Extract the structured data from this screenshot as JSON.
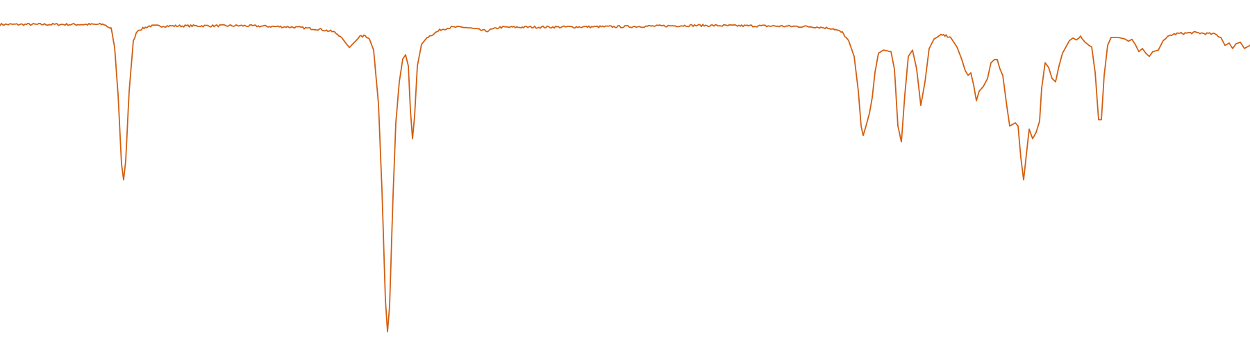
{
  "chart_data": {
    "type": "line",
    "title": "",
    "xlabel": "",
    "ylabel": "",
    "xlim": [
      0,
      1800
    ],
    "ylim": [
      0,
      1
    ],
    "grid": false,
    "legend": "none",
    "axes_visible": false,
    "series": [
      {
        "color": "#d35f10",
        "style": "noisy",
        "points": [
          [
            0,
            0.971
          ],
          [
            150,
            0.971
          ],
          [
            160,
            0.958
          ],
          [
            165,
            0.9
          ],
          [
            170,
            0.75
          ],
          [
            175,
            0.53
          ],
          [
            178,
            0.48
          ],
          [
            181,
            0.54
          ],
          [
            186,
            0.76
          ],
          [
            192,
            0.92
          ],
          [
            198,
            0.952
          ],
          [
            215,
            0.966
          ],
          [
            350,
            0.967
          ],
          [
            420,
            0.963
          ],
          [
            460,
            0.956
          ],
          [
            480,
            0.948
          ],
          [
            490,
            0.935
          ],
          [
            496,
            0.918
          ],
          [
            503,
            0.898
          ],
          [
            510,
            0.914
          ],
          [
            518,
            0.932
          ],
          [
            526,
            0.935
          ],
          [
            532,
            0.925
          ],
          [
            538,
            0.89
          ],
          [
            545,
            0.72
          ],
          [
            550,
            0.45
          ],
          [
            555,
            0.1
          ],
          [
            558,
            0.0
          ],
          [
            561,
            0.08
          ],
          [
            566,
            0.43
          ],
          [
            570,
            0.66
          ],
          [
            575,
            0.79
          ],
          [
            580,
            0.862
          ],
          [
            584,
            0.875
          ],
          [
            588,
            0.84
          ],
          [
            591,
            0.7
          ],
          [
            594,
            0.61
          ],
          [
            597,
            0.68
          ],
          [
            601,
            0.84
          ],
          [
            607,
            0.908
          ],
          [
            615,
            0.93
          ],
          [
            635,
            0.955
          ],
          [
            650,
            0.962
          ],
          [
            670,
            0.962
          ],
          [
            700,
            0.95
          ],
          [
            720,
            0.962
          ],
          [
            900,
            0.964
          ],
          [
            1000,
            0.968
          ],
          [
            1110,
            0.966
          ],
          [
            1170,
            0.964
          ],
          [
            1200,
            0.958
          ],
          [
            1213,
            0.945
          ],
          [
            1222,
            0.92
          ],
          [
            1230,
            0.87
          ],
          [
            1236,
            0.76
          ],
          [
            1240,
            0.65
          ],
          [
            1243,
            0.62
          ],
          [
            1247,
            0.65
          ],
          [
            1252,
            0.69
          ],
          [
            1256,
            0.74
          ],
          [
            1260,
            0.82
          ],
          [
            1265,
            0.88
          ],
          [
            1272,
            0.89
          ],
          [
            1283,
            0.885
          ],
          [
            1288,
            0.83
          ],
          [
            1293,
            0.65
          ],
          [
            1298,
            0.6
          ],
          [
            1303,
            0.75
          ],
          [
            1308,
            0.87
          ],
          [
            1314,
            0.89
          ],
          [
            1320,
            0.83
          ],
          [
            1326,
            0.715
          ],
          [
            1332,
            0.79
          ],
          [
            1338,
            0.895
          ],
          [
            1345,
            0.925
          ],
          [
            1355,
            0.937
          ],
          [
            1368,
            0.933
          ],
          [
            1378,
            0.9
          ],
          [
            1385,
            0.86
          ],
          [
            1390,
            0.825
          ],
          [
            1394,
            0.81
          ],
          [
            1398,
            0.818
          ],
          [
            1402,
            0.78
          ],
          [
            1406,
            0.73
          ],
          [
            1410,
            0.76
          ],
          [
            1416,
            0.775
          ],
          [
            1422,
            0.8
          ],
          [
            1427,
            0.85
          ],
          [
            1432,
            0.86
          ],
          [
            1436,
            0.86
          ],
          [
            1440,
            0.83
          ],
          [
            1444,
            0.81
          ],
          [
            1450,
            0.71
          ],
          [
            1454,
            0.65
          ],
          [
            1458,
            0.655
          ],
          [
            1462,
            0.66
          ],
          [
            1466,
            0.65
          ],
          [
            1470,
            0.55
          ],
          [
            1474,
            0.48
          ],
          [
            1478,
            0.56
          ],
          [
            1482,
            0.64
          ],
          [
            1487,
            0.61
          ],
          [
            1492,
            0.63
          ],
          [
            1497,
            0.665
          ],
          [
            1500,
            0.77
          ],
          [
            1505,
            0.85
          ],
          [
            1510,
            0.835
          ],
          [
            1515,
            0.8
          ],
          [
            1520,
            0.79
          ],
          [
            1525,
            0.84
          ],
          [
            1530,
            0.88
          ],
          [
            1540,
            0.92
          ],
          [
            1545,
            0.928
          ],
          [
            1550,
            0.922
          ],
          [
            1556,
            0.932
          ],
          [
            1562,
            0.916
          ],
          [
            1568,
            0.905
          ],
          [
            1572,
            0.9
          ],
          [
            1577,
            0.82
          ],
          [
            1582,
            0.67
          ],
          [
            1586,
            0.67
          ],
          [
            1590,
            0.81
          ],
          [
            1595,
            0.905
          ],
          [
            1600,
            0.93
          ],
          [
            1610,
            0.93
          ],
          [
            1620,
            0.925
          ],
          [
            1625,
            0.918
          ],
          [
            1630,
            0.924
          ],
          [
            1635,
            0.907
          ],
          [
            1640,
            0.885
          ],
          [
            1645,
            0.895
          ],
          [
            1650,
            0.88
          ],
          [
            1655,
            0.87
          ],
          [
            1660,
            0.885
          ],
          [
            1668,
            0.89
          ],
          [
            1675,
            0.92
          ],
          [
            1685,
            0.937
          ],
          [
            1695,
            0.942
          ],
          [
            1720,
            0.945
          ],
          [
            1750,
            0.94
          ],
          [
            1758,
            0.93
          ],
          [
            1764,
            0.905
          ],
          [
            1770,
            0.912
          ],
          [
            1775,
            0.895
          ],
          [
            1780,
            0.91
          ],
          [
            1786,
            0.915
          ],
          [
            1792,
            0.895
          ],
          [
            1800,
            0.905
          ]
        ]
      }
    ]
  }
}
